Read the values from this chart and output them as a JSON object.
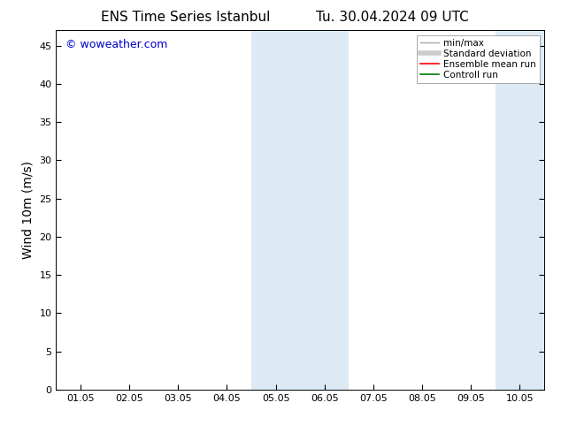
{
  "title_left": "ENS Time Series Istanbul",
  "title_right": "Tu. 30.04.2024 09 UTC",
  "ylabel": "Wind 10m (m/s)",
  "ylim": [
    0,
    47
  ],
  "yticks": [
    0,
    5,
    10,
    15,
    20,
    25,
    30,
    35,
    40,
    45
  ],
  "xtick_labels": [
    "01.05",
    "02.05",
    "03.05",
    "04.05",
    "05.05",
    "06.05",
    "07.05",
    "08.05",
    "09.05",
    "10.05"
  ],
  "x_values": [
    0,
    1,
    2,
    3,
    4,
    5,
    6,
    7,
    8,
    9
  ],
  "x_min": -0.5,
  "x_max": 9.5,
  "shaded_regions": [
    {
      "x_start": 3.5,
      "x_end": 4.5,
      "color": "#ddeaf5"
    },
    {
      "x_start": 4.5,
      "x_end": 5.5,
      "color": "#ddeaf5"
    },
    {
      "x_start": 8.5,
      "x_end": 9.5,
      "color": "#ddeaf5"
    }
  ],
  "legend_entries": [
    {
      "label": "min/max",
      "color": "#aaaaaa",
      "linewidth": 1.0,
      "linestyle": "-"
    },
    {
      "label": "Standard deviation",
      "color": "#cccccc",
      "linewidth": 4,
      "linestyle": "-"
    },
    {
      "label": "Ensemble mean run",
      "color": "#ff0000",
      "linewidth": 1.2,
      "linestyle": "-"
    },
    {
      "label": "Controll run",
      "color": "#008000",
      "linewidth": 1.2,
      "linestyle": "-"
    }
  ],
  "watermark_text": "© woweather.com",
  "watermark_color": "#0000cc",
  "watermark_fontsize": 9,
  "background_color": "#ffffff",
  "title_fontsize": 11,
  "axis_label_fontsize": 10,
  "tick_fontsize": 8,
  "legend_fontsize": 7.5
}
